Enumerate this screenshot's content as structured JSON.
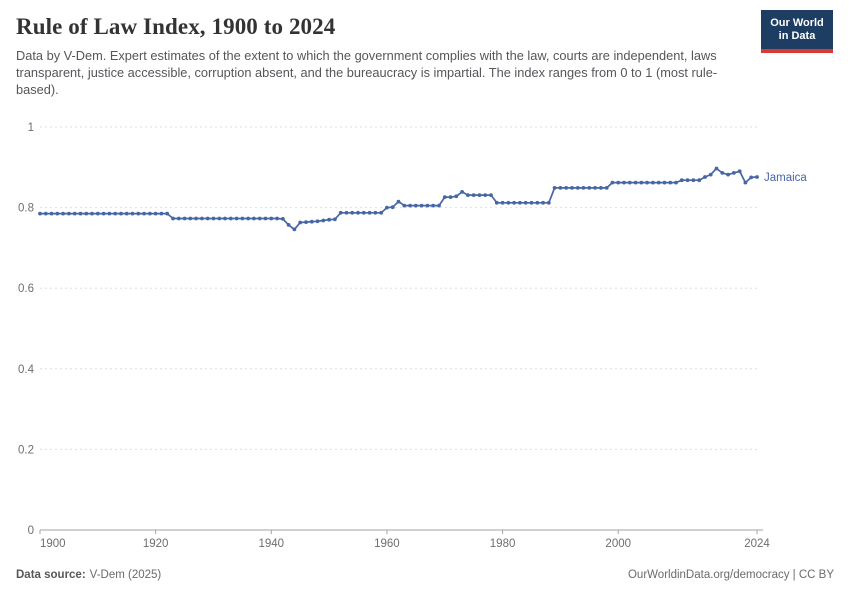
{
  "header": {
    "title": "Rule of Law Index, 1900 to 2024",
    "subtitle": "Data by V-Dem. Expert estimates of the extent to which the government complies with the law, courts are independent, laws transparent, justice accessible, corruption absent, and the bureaucracy is impartial. The index ranges from 0 to 1 (most rule-based).",
    "logo": {
      "line1": "Our World",
      "line2": "in Data",
      "bg_color": "#1d3d63",
      "accent_color": "#d93a32"
    }
  },
  "footer": {
    "source_label": "Data source:",
    "source_value": "V-Dem (2025)",
    "right_text": "OurWorldinData.org/democracy | CC BY"
  },
  "chart_data": {
    "type": "line",
    "title": "Rule of Law Index, 1900 to 2024",
    "xlabel": "",
    "ylabel": "",
    "xlim": [
      1900,
      2024
    ],
    "ylim": [
      0,
      1
    ],
    "x_ticks": [
      1900,
      1920,
      1940,
      1960,
      1980,
      2000,
      2024
    ],
    "y_ticks": [
      0,
      0.2,
      0.4,
      0.6,
      0.8,
      1
    ],
    "grid": "horizontal-dashed",
    "legend_position": "end-of-line-label",
    "line_color": "#4766a6",
    "axis_color": "#a3a3a3",
    "grid_color": "#dedede",
    "tick_label_color": "#6e6e6e",
    "years": [
      1900,
      1901,
      1902,
      1903,
      1904,
      1905,
      1906,
      1907,
      1908,
      1909,
      1910,
      1911,
      1912,
      1913,
      1914,
      1915,
      1916,
      1917,
      1918,
      1919,
      1920,
      1921,
      1922,
      1923,
      1924,
      1925,
      1926,
      1927,
      1928,
      1929,
      1930,
      1931,
      1932,
      1933,
      1934,
      1935,
      1936,
      1937,
      1938,
      1939,
      1940,
      1941,
      1942,
      1943,
      1944,
      1945,
      1946,
      1947,
      1948,
      1949,
      1950,
      1951,
      1952,
      1953,
      1954,
      1955,
      1956,
      1957,
      1958,
      1959,
      1960,
      1961,
      1962,
      1963,
      1964,
      1965,
      1966,
      1967,
      1968,
      1969,
      1970,
      1971,
      1972,
      1973,
      1974,
      1975,
      1976,
      1977,
      1978,
      1979,
      1980,
      1981,
      1982,
      1983,
      1984,
      1985,
      1986,
      1987,
      1988,
      1989,
      1990,
      1991,
      1992,
      1993,
      1994,
      1995,
      1996,
      1997,
      1998,
      1999,
      2000,
      2001,
      2002,
      2003,
      2004,
      2005,
      2006,
      2007,
      2008,
      2009,
      2010,
      2011,
      2012,
      2013,
      2014,
      2015,
      2016,
      2017,
      2018,
      2019,
      2020,
      2021,
      2022,
      2023,
      2024
    ],
    "series": [
      {
        "name": "Jamaica",
        "color": "#4766a6",
        "values": [
          0.785,
          0.785,
          0.785,
          0.785,
          0.785,
          0.785,
          0.785,
          0.785,
          0.785,
          0.785,
          0.785,
          0.785,
          0.785,
          0.785,
          0.785,
          0.785,
          0.785,
          0.785,
          0.785,
          0.785,
          0.785,
          0.785,
          0.785,
          0.773,
          0.773,
          0.773,
          0.773,
          0.773,
          0.773,
          0.773,
          0.773,
          0.773,
          0.773,
          0.773,
          0.773,
          0.773,
          0.773,
          0.773,
          0.773,
          0.773,
          0.773,
          0.773,
          0.772,
          0.757,
          0.746,
          0.763,
          0.764,
          0.765,
          0.766,
          0.768,
          0.77,
          0.771,
          0.787,
          0.787,
          0.787,
          0.787,
          0.787,
          0.787,
          0.787,
          0.787,
          0.8,
          0.801,
          0.815,
          0.805,
          0.805,
          0.805,
          0.805,
          0.805,
          0.805,
          0.805,
          0.826,
          0.826,
          0.828,
          0.839,
          0.831,
          0.831,
          0.831,
          0.831,
          0.831,
          0.812,
          0.812,
          0.812,
          0.812,
          0.812,
          0.812,
          0.812,
          0.812,
          0.812,
          0.812,
          0.849,
          0.849,
          0.849,
          0.849,
          0.849,
          0.849,
          0.849,
          0.849,
          0.849,
          0.849,
          0.862,
          0.862,
          0.862,
          0.862,
          0.862,
          0.862,
          0.862,
          0.862,
          0.862,
          0.862,
          0.862,
          0.862,
          0.868,
          0.868,
          0.868,
          0.868,
          0.876,
          0.882,
          0.897,
          0.886,
          0.882,
          0.886,
          0.89,
          0.862,
          0.875,
          0.876
        ]
      }
    ]
  }
}
